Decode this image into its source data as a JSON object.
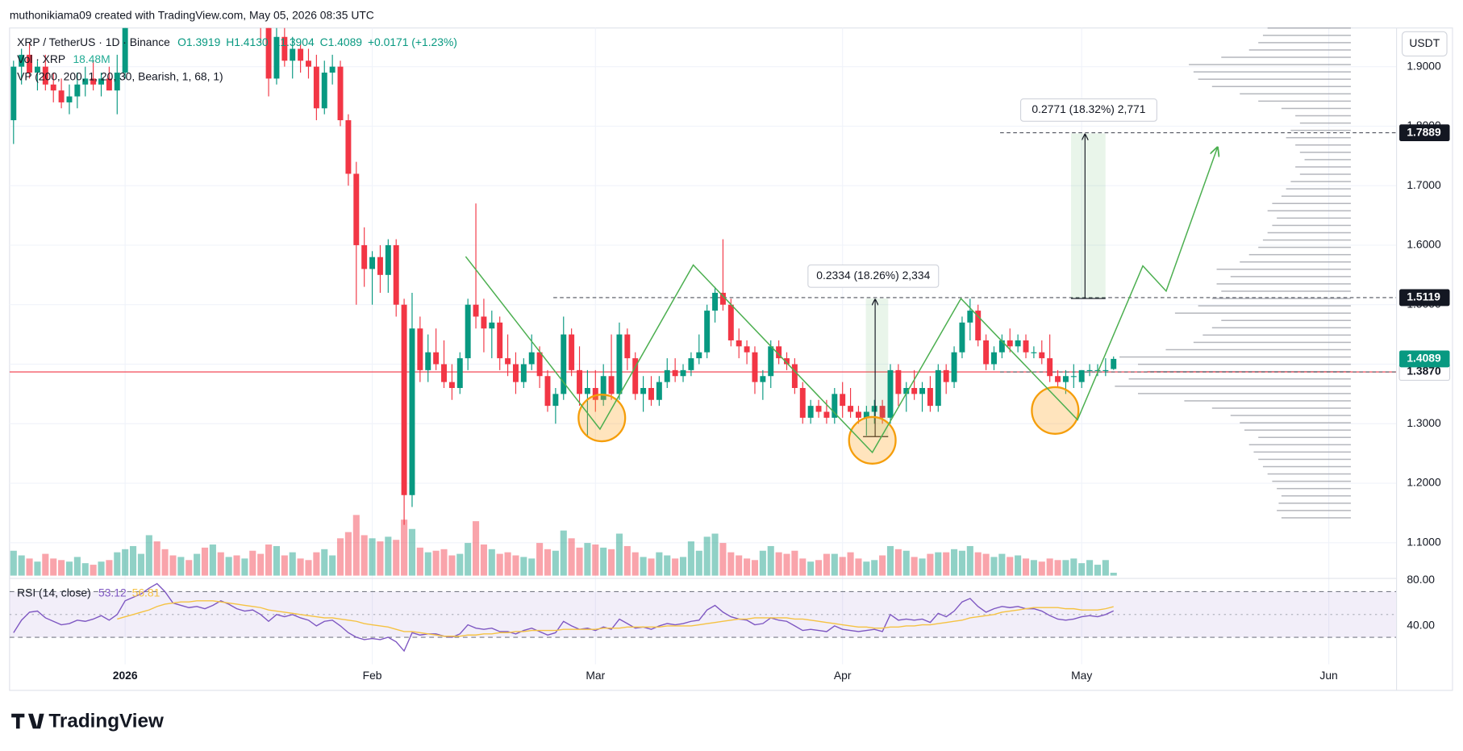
{
  "credit": "muthonikiama09 created with TradingView.com, May 05, 2026 08:35 UTC",
  "watermark": "TradingView",
  "currency_button": "USDT",
  "chart_data": {
    "type": "candlestick",
    "legend": {
      "symbol": "XRP / TetherUS · 1D · Binance",
      "open": "O1.3919",
      "high": "H1.4130",
      "low": "L1.3904",
      "close": "C1.4089",
      "change": "+0.0171 (+1.23%)"
    },
    "up_color": "#089981",
    "down_color": "#f23645",
    "open": [
      1.81,
      1.9,
      1.92,
      1.89,
      1.9,
      1.87,
      1.86,
      1.84,
      1.85,
      1.87,
      1.88,
      1.87,
      1.88,
      1.86,
      1.89,
      2.0,
      2.08,
      2.15,
      2.28,
      2.22,
      2.14,
      2.08,
      2.12,
      2.07,
      2.1,
      2.06,
      2.07,
      2.04,
      2.05,
      2.02,
      2.03,
      1.99,
      1.97,
      1.88,
      1.95,
      1.91,
      1.93,
      1.91,
      1.9,
      1.83,
      1.89,
      1.9,
      1.81,
      1.72,
      1.6,
      1.56,
      1.58,
      1.55,
      1.6,
      1.5,
      1.18,
      1.46,
      1.39,
      1.42,
      1.4,
      1.37,
      1.36,
      1.41,
      1.5,
      1.48,
      1.46,
      1.47,
      1.41,
      1.4,
      1.37,
      1.4,
      1.42,
      1.38,
      1.33,
      1.35,
      1.45,
      1.39,
      1.35,
      1.36,
      1.34,
      1.38,
      1.35,
      1.45,
      1.41,
      1.35,
      1.36,
      1.34,
      1.37,
      1.39,
      1.38,
      1.39,
      1.41,
      1.42,
      1.49,
      1.52,
      1.5,
      1.44,
      1.43,
      1.42,
      1.37,
      1.38,
      1.43,
      1.41,
      1.4,
      1.36,
      1.31,
      1.33,
      1.32,
      1.31,
      1.35,
      1.33,
      1.32,
      1.31,
      1.32,
      1.33,
      1.31,
      1.39,
      1.35,
      1.36,
      1.35,
      1.36,
      1.33,
      1.39,
      1.37,
      1.42,
      1.47,
      1.49,
      1.44,
      1.4,
      1.42,
      1.44,
      1.43,
      1.44,
      1.42,
      1.42,
      1.41,
      1.38,
      1.37,
      1.38,
      1.37,
      1.39,
      1.39,
      1.39,
      1.3919
    ],
    "high": [
      1.91,
      1.93,
      1.94,
      1.91,
      1.92,
      1.89,
      1.88,
      1.87,
      1.89,
      1.9,
      1.91,
      1.89,
      1.9,
      1.92,
      2.02,
      2.1,
      2.18,
      2.3,
      2.4,
      2.27,
      2.2,
      2.16,
      2.16,
      2.12,
      2.14,
      2.1,
      2.11,
      2.08,
      2.09,
      2.06,
      2.05,
      2.02,
      2.0,
      1.97,
      1.98,
      1.95,
      1.94,
      1.93,
      1.92,
      1.91,
      1.92,
      1.91,
      1.82,
      1.74,
      1.63,
      1.59,
      1.6,
      1.61,
      1.61,
      1.51,
      1.52,
      1.48,
      1.45,
      1.46,
      1.44,
      1.4,
      1.42,
      1.51,
      1.67,
      1.51,
      1.49,
      1.48,
      1.45,
      1.42,
      1.41,
      1.45,
      1.43,
      1.39,
      1.36,
      1.48,
      1.46,
      1.43,
      1.39,
      1.39,
      1.4,
      1.45,
      1.47,
      1.46,
      1.42,
      1.38,
      1.38,
      1.38,
      1.41,
      1.41,
      1.4,
      1.42,
      1.45,
      1.5,
      1.53,
      1.61,
      1.51,
      1.46,
      1.44,
      1.43,
      1.39,
      1.44,
      1.44,
      1.42,
      1.41,
      1.37,
      1.34,
      1.34,
      1.34,
      1.36,
      1.37,
      1.36,
      1.33,
      1.33,
      1.34,
      1.34,
      1.4,
      1.4,
      1.37,
      1.39,
      1.37,
      1.38,
      1.4,
      1.4,
      1.43,
      1.48,
      1.51,
      1.5,
      1.45,
      1.43,
      1.45,
      1.46,
      1.45,
      1.45,
      1.43,
      1.44,
      1.45,
      1.39,
      1.39,
      1.4,
      1.39,
      1.4,
      1.4,
      1.41,
      1.413
    ],
    "low": [
      1.77,
      1.87,
      1.88,
      1.86,
      1.86,
      1.84,
      1.83,
      1.82,
      1.83,
      1.85,
      1.86,
      1.85,
      1.86,
      1.82,
      1.88,
      1.99,
      2.05,
      2.12,
      2.2,
      2.1,
      2.06,
      2.05,
      2.05,
      2.03,
      2.05,
      2.02,
      2.03,
      2.0,
      2.01,
      1.98,
      1.97,
      1.94,
      1.85,
      1.87,
      1.9,
      1.88,
      1.89,
      1.88,
      1.81,
      1.82,
      1.87,
      1.8,
      1.7,
      1.5,
      1.53,
      1.5,
      1.52,
      1.52,
      1.48,
      1.13,
      1.16,
      1.37,
      1.37,
      1.39,
      1.36,
      1.34,
      1.35,
      1.39,
      1.46,
      1.42,
      1.41,
      1.39,
      1.38,
      1.35,
      1.36,
      1.39,
      1.36,
      1.32,
      1.3,
      1.34,
      1.38,
      1.33,
      1.28,
      1.32,
      1.33,
      1.34,
      1.34,
      1.39,
      1.34,
      1.32,
      1.33,
      1.33,
      1.36,
      1.37,
      1.37,
      1.38,
      1.4,
      1.41,
      1.47,
      1.49,
      1.43,
      1.41,
      1.4,
      1.35,
      1.34,
      1.36,
      1.4,
      1.39,
      1.35,
      1.3,
      1.3,
      1.31,
      1.3,
      1.3,
      1.31,
      1.31,
      1.3,
      1.28,
      1.3,
      1.3,
      1.3,
      1.33,
      1.32,
      1.34,
      1.32,
      1.32,
      1.32,
      1.35,
      1.36,
      1.41,
      1.44,
      1.43,
      1.39,
      1.39,
      1.41,
      1.42,
      1.42,
      1.41,
      1.41,
      1.4,
      1.37,
      1.36,
      1.35,
      1.36,
      1.36,
      1.38,
      1.38,
      1.38,
      1.3904
    ],
    "close": [
      1.9,
      1.92,
      1.89,
      1.9,
      1.87,
      1.86,
      1.84,
      1.85,
      1.87,
      1.88,
      1.87,
      1.88,
      1.86,
      1.89,
      2.0,
      2.08,
      2.15,
      2.28,
      2.22,
      2.14,
      2.08,
      2.12,
      2.07,
      2.1,
      2.06,
      2.07,
      2.04,
      2.05,
      2.02,
      2.03,
      1.99,
      1.97,
      1.88,
      1.95,
      1.91,
      1.93,
      1.91,
      1.9,
      1.83,
      1.89,
      1.9,
      1.81,
      1.72,
      1.6,
      1.56,
      1.58,
      1.55,
      1.6,
      1.5,
      1.18,
      1.46,
      1.39,
      1.42,
      1.4,
      1.37,
      1.36,
      1.41,
      1.5,
      1.48,
      1.46,
      1.47,
      1.41,
      1.4,
      1.37,
      1.4,
      1.42,
      1.38,
      1.33,
      1.35,
      1.45,
      1.39,
      1.35,
      1.36,
      1.34,
      1.38,
      1.35,
      1.45,
      1.41,
      1.35,
      1.36,
      1.34,
      1.37,
      1.39,
      1.38,
      1.39,
      1.41,
      1.42,
      1.49,
      1.52,
      1.5,
      1.44,
      1.43,
      1.42,
      1.37,
      1.38,
      1.43,
      1.41,
      1.4,
      1.36,
      1.31,
      1.33,
      1.32,
      1.31,
      1.35,
      1.33,
      1.32,
      1.31,
      1.32,
      1.33,
      1.31,
      1.39,
      1.35,
      1.36,
      1.35,
      1.36,
      1.33,
      1.39,
      1.37,
      1.42,
      1.47,
      1.49,
      1.44,
      1.4,
      1.42,
      1.44,
      1.43,
      1.44,
      1.42,
      1.42,
      1.41,
      1.38,
      1.37,
      1.38,
      1.38,
      1.39,
      1.39,
      1.39,
      1.39,
      1.4089
    ],
    "xlim": [
      -0.5,
      173.5
    ],
    "xticks": [
      {
        "value": 14,
        "label": "2026"
      },
      {
        "value": 45,
        "label": "Feb"
      },
      {
        "value": 73,
        "label": "Mar"
      },
      {
        "value": 104,
        "label": "Apr"
      },
      {
        "value": 134,
        "label": "May"
      },
      {
        "value": 165,
        "label": "Jun"
      }
    ],
    "ylim": [
      1.04,
      1.965
    ],
    "yticks": [
      {
        "value": 1.1,
        "label": "1.1000"
      },
      {
        "value": 1.2,
        "label": "1.2000"
      },
      {
        "value": 1.3,
        "label": "1.3000"
      },
      {
        "value": 1.4,
        "label": "1.4000"
      },
      {
        "value": 1.5,
        "label": "1.5000"
      },
      {
        "value": 1.6,
        "label": "1.6000"
      },
      {
        "value": 1.7,
        "label": "1.7000"
      },
      {
        "value": 1.8,
        "label": "1.8000"
      },
      {
        "value": 1.9,
        "label": "1.9000"
      }
    ],
    "grid": true,
    "price_lines": [
      1.7889,
      1.5119,
      {
        "value": 1.387,
        "label": "1.3870"
      }
    ],
    "annotations": [
      "0.2334 (18.26%) 2,334",
      "0.2771 (18.32%) 2,771"
    ],
    "volume": {
      "title": "Vol · XRP",
      "last_value_label": "18.48M",
      "values": [
        160,
        130,
        110,
        90,
        140,
        110,
        100,
        90,
        120,
        80,
        70,
        90,
        100,
        150,
        170,
        190,
        140,
        260,
        220,
        170,
        130,
        120,
        100,
        140,
        180,
        200,
        150,
        120,
        130,
        110,
        160,
        140,
        200,
        190,
        130,
        150,
        110,
        100,
        150,
        170,
        130,
        240,
        280,
        390,
        260,
        240,
        220,
        250,
        230,
        360,
        300,
        180,
        150,
        160,
        170,
        130,
        140,
        210,
        350,
        200,
        170,
        140,
        150,
        130,
        120,
        110,
        210,
        170,
        160,
        290,
        240,
        180,
        210,
        200,
        180,
        170,
        270,
        190,
        150,
        120,
        110,
        150,
        130,
        110,
        120,
        220,
        160,
        250,
        270,
        210,
        150,
        130,
        110,
        100,
        160,
        190,
        150,
        140,
        160,
        110,
        90,
        100,
        140,
        140,
        120,
        150,
        110,
        90,
        100,
        130,
        190,
        170,
        160,
        120,
        110,
        140,
        150,
        150,
        170,
        160,
        190,
        150,
        140,
        120,
        140,
        120,
        130,
        110,
        100,
        90,
        110,
        100,
        100,
        110,
        80,
        100,
        70,
        100,
        18.48
      ]
    },
    "volume_profile": {
      "title": "VP (200, 200, 1, 20, 30, Bearish, 1, 68, 1)",
      "values": [
        75,
        80,
        78,
        75,
        80,
        85,
        90,
        95,
        100,
        105,
        110,
        100,
        115,
        120,
        130,
        150,
        180,
        230,
        255,
        240,
        220,
        230,
        250,
        200,
        170,
        160,
        150,
        140,
        190,
        165,
        150,
        140,
        145,
        130,
        145,
        120,
        110,
        100,
        95,
        90,
        85,
        80,
        90,
        85,
        75,
        70,
        65,
        55,
        60,
        50,
        55,
        60,
        70,
        65,
        55,
        60,
        75,
        100,
        120,
        150,
        165,
        170,
        175,
        140,
        110,
        100,
        95,
        90
      ]
    },
    "rsi": {
      "title": "RSI (14, close)",
      "ylim": [
        6.4,
        81.6
      ],
      "yticks": [
        {
          "value": 40,
          "label": "40.00"
        },
        {
          "value": 80,
          "label": "80.00"
        }
      ],
      "bands": [
        30,
        70
      ],
      "midline": 50,
      "series": [
        {
          "color": "#7e57c2",
          "values": [
            34,
            45,
            52,
            53,
            47,
            44,
            41,
            42,
            45,
            44,
            46,
            49,
            45,
            50,
            62,
            65,
            68,
            73,
            77,
            70,
            60,
            58,
            56,
            57,
            55,
            58,
            62,
            59,
            55,
            53,
            54,
            50,
            44,
            50,
            48,
            50,
            47,
            45,
            40,
            44,
            45,
            40,
            34,
            30,
            28,
            29,
            28,
            30,
            26,
            18,
            34,
            32,
            33,
            33,
            31,
            30,
            33,
            41,
            38,
            37,
            38,
            35,
            35,
            33,
            36,
            38,
            35,
            32,
            34,
            44,
            40,
            37,
            38,
            36,
            39,
            37,
            46,
            42,
            38,
            39,
            37,
            40,
            42,
            41,
            42,
            44,
            45,
            54,
            58,
            52,
            48,
            46,
            45,
            41,
            42,
            47,
            45,
            44,
            40,
            36,
            37,
            36,
            35,
            40,
            37,
            36,
            35,
            36,
            37,
            35,
            50,
            45,
            46,
            45,
            46,
            43,
            51,
            48,
            53,
            61,
            64,
            57,
            52,
            55,
            57,
            56,
            57,
            55,
            55,
            53,
            49,
            46,
            45,
            46,
            48,
            49,
            48,
            50,
            53.12
          ]
        },
        {
          "color": "#f5c242",
          "values": [
            null,
            null,
            null,
            null,
            null,
            null,
            null,
            null,
            null,
            null,
            null,
            null,
            null,
            46,
            48,
            50,
            52,
            54,
            57,
            59,
            60,
            61,
            61,
            62,
            62,
            62,
            61,
            60,
            59,
            58,
            57,
            56,
            54,
            53,
            52,
            51,
            50,
            49,
            48,
            47,
            47,
            46,
            45,
            44,
            42,
            41,
            40,
            39,
            37,
            35,
            35,
            34,
            33,
            32,
            31,
            31,
            31,
            32,
            32,
            33,
            33,
            34,
            34,
            35,
            35,
            36,
            36,
            36,
            36,
            37,
            37,
            37,
            37,
            37,
            38,
            38,
            38,
            39,
            39,
            39,
            39,
            39,
            40,
            40,
            40,
            40,
            41,
            42,
            43,
            44,
            45,
            46,
            46,
            47,
            47,
            47,
            47,
            47,
            46,
            46,
            45,
            44,
            43,
            42,
            41,
            40,
            39,
            39,
            38,
            38,
            39,
            39,
            40,
            40,
            41,
            41,
            42,
            43,
            44,
            45,
            47,
            48,
            49,
            50,
            52,
            53,
            54,
            55,
            56,
            56,
            56,
            56,
            55,
            55,
            54,
            54,
            54,
            55,
            56.81
          ]
        }
      ]
    }
  }
}
